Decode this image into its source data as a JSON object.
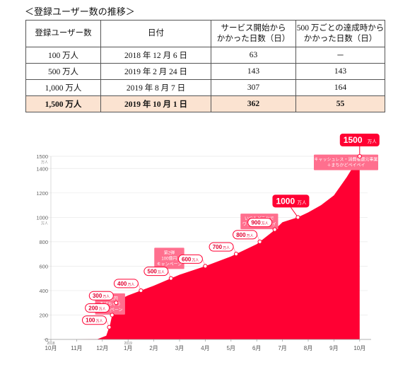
{
  "caption": "＜登録ユーザー数の推移＞",
  "table": {
    "headers": [
      "登録ユーザー数",
      "日付",
      "サービス開始から\nかかった日数（日）",
      "500 万ごとの達成時から\nかかった日数（日）"
    ],
    "rows": [
      [
        "100 万人",
        "2018 年 12 月 6 日",
        "63",
        "－"
      ],
      [
        "500 万人",
        "2019 年 2 月 24 日",
        "143",
        "143"
      ],
      [
        "1,000 万人",
        "2019 年 8 月 7 日",
        "307",
        "164"
      ],
      [
        "1,500 万人",
        "2019 年 10 月 1 日",
        "362",
        "55"
      ]
    ]
  },
  "chart_data": {
    "type": "area",
    "color": "#ff0033",
    "x_labels": [
      "10月",
      "11月",
      "12月",
      "1月",
      "2月",
      "3月",
      "4月",
      "5月",
      "6月",
      "7月",
      "8月",
      "9月",
      "10月"
    ],
    "year_labels": [
      {
        "label": "2018",
        "at": "10月"
      },
      {
        "label": "2019",
        "at": "1月"
      }
    ],
    "y_ticks": [
      0,
      200,
      400,
      600,
      800,
      1000,
      1200,
      1400,
      1500
    ],
    "y_unit": "万人",
    "ylim": [
      0,
      1500
    ],
    "x": [
      -0.1,
      1.0,
      1.8,
      2.15,
      2.3,
      2.38,
      2.45,
      2.55,
      2.7,
      3.0,
      4.0,
      5.0,
      6.0,
      7.0,
      8.0,
      8.6,
      9.0,
      9.6,
      10.0,
      10.5,
      11.0,
      11.5,
      12.0
    ],
    "y": [
      0,
      0,
      2,
      30,
      120,
      200,
      270,
      305,
      330,
      360,
      440,
      530,
      600,
      680,
      780,
      880,
      960,
      1000,
      1040,
      1100,
      1180,
      1330,
      1500
    ],
    "milestones": [
      {
        "label": "100",
        "unit": "万人",
        "value": 100
      },
      {
        "label": "200",
        "unit": "万人",
        "value": 200
      },
      {
        "label": "300",
        "unit": "万人",
        "value": 300
      },
      {
        "label": "400",
        "unit": "万人",
        "value": 400
      },
      {
        "label": "500",
        "unit": "万人",
        "value": 500
      },
      {
        "label": "600",
        "unit": "万人",
        "value": 600
      },
      {
        "label": "700",
        "unit": "万人",
        "value": 700
      },
      {
        "label": "800",
        "unit": "万人",
        "value": 800
      },
      {
        "label": "900",
        "unit": "万人",
        "value": 900
      },
      {
        "label": "1000",
        "unit": "万人",
        "value": 1000
      },
      {
        "label": "1500",
        "unit": "万人",
        "value": 1500
      }
    ],
    "annotations": [
      {
        "lines": [
          "100億円",
          "あげちゃう",
          "キャンペーン"
        ],
        "x": 2.3
      },
      {
        "lines": [
          "第2弾",
          "100億円",
          "キャンペーン"
        ],
        "x": 4.6
      },
      {
        "lines": [
          "いつもどこかで",
          "ワクワクペイペイ"
        ],
        "x": 8.1
      },
      {
        "lines": [
          "キャッシュレス・消費者還元事業",
          "＋まちかどペイペイ"
        ],
        "x": 11.6
      }
    ]
  }
}
